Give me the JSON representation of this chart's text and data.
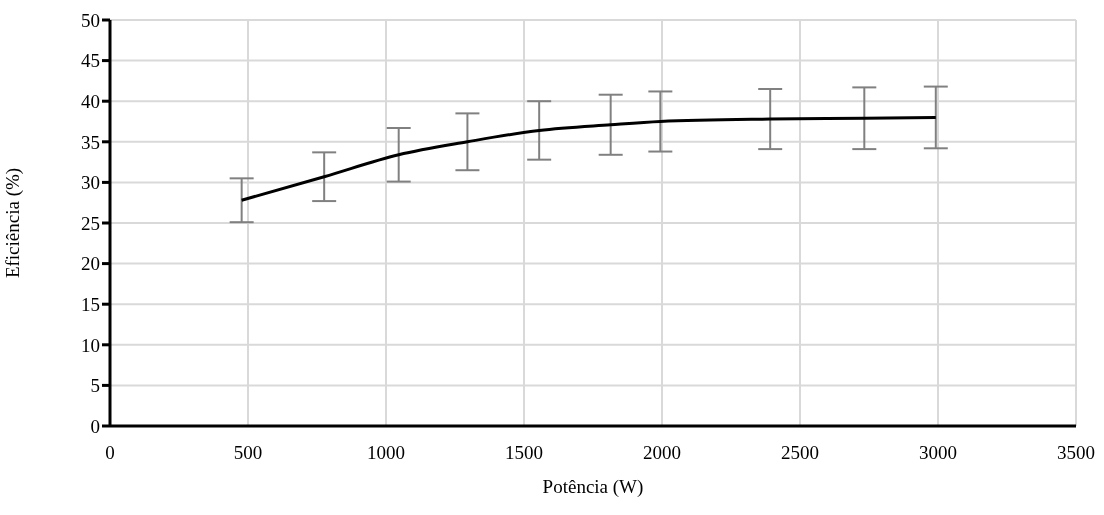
{
  "chart_data": {
    "type": "line",
    "xlabel": "Potência (W)",
    "ylabel": "Eficiência (%)",
    "xlim": [
      0,
      3500
    ],
    "xticks": [
      0,
      500,
      1000,
      1500,
      2000,
      2500,
      3000,
      3500
    ],
    "ylim": [
      0,
      50
    ],
    "yticks": [
      0,
      5,
      10,
      15,
      20,
      25,
      30,
      35,
      40,
      45,
      50
    ],
    "grid": true,
    "marker": "none",
    "x": [
      477,
      776,
      1046,
      1295,
      1555,
      1814,
      1994,
      2392,
      2733,
      2992
    ],
    "series": [
      {
        "color": "#000000",
        "values": [
          27.8,
          30.7,
          33.4,
          35.0,
          36.4,
          37.1,
          37.5,
          37.8,
          37.9,
          38.0
        ],
        "errors": [
          2.7,
          3.0,
          3.3,
          3.5,
          3.6,
          3.7,
          3.7,
          3.7,
          3.8,
          3.8
        ]
      }
    ]
  }
}
